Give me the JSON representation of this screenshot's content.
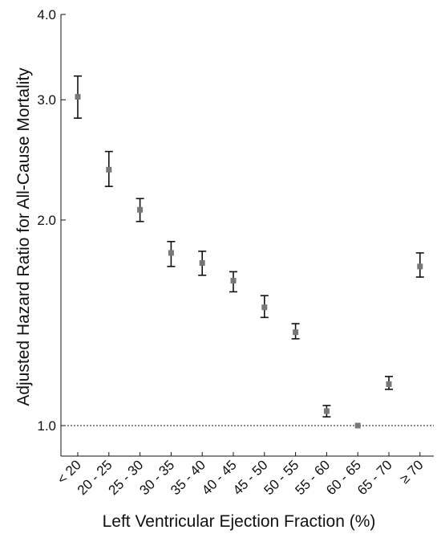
{
  "chart_data": {
    "type": "scatter",
    "xlabel": "Left Ventricular Ejection Fraction (%)",
    "ylabel": "Adjusted Hazard Ratio for All-Cause Mortality",
    "y_scale": "log",
    "ylim": [
      0.88,
      4.0
    ],
    "y_ticks": [
      {
        "value": 1.0,
        "label": "1.0"
      },
      {
        "value": 2.0,
        "label": "2.0"
      },
      {
        "value": 3.0,
        "label": "3.0"
      },
      {
        "value": 4.0,
        "label": "4.0"
      }
    ],
    "categories": [
      "< 20",
      "20 - 25",
      "25 - 30",
      "30 - 35",
      "35 - 40",
      "40 - 45",
      "45 - 50",
      "50 - 55",
      "55 - 60",
      "60 - 65",
      "65 - 70",
      "≥ 70"
    ],
    "values": [
      3.03,
      2.37,
      2.07,
      1.79,
      1.73,
      1.63,
      1.49,
      1.37,
      1.05,
      1.0,
      1.15,
      1.71
    ],
    "ci_lower": [
      2.82,
      2.24,
      1.99,
      1.71,
      1.66,
      1.57,
      1.44,
      1.34,
      1.03,
      1.0,
      1.13,
      1.65
    ],
    "ci_upper": [
      3.25,
      2.52,
      2.15,
      1.86,
      1.8,
      1.68,
      1.55,
      1.41,
      1.07,
      1.0,
      1.18,
      1.79
    ],
    "reference_line": {
      "value": 1.0,
      "style": "dotted"
    },
    "marker_color": "#777777",
    "errorbar_color": "#111111",
    "grid": false
  }
}
